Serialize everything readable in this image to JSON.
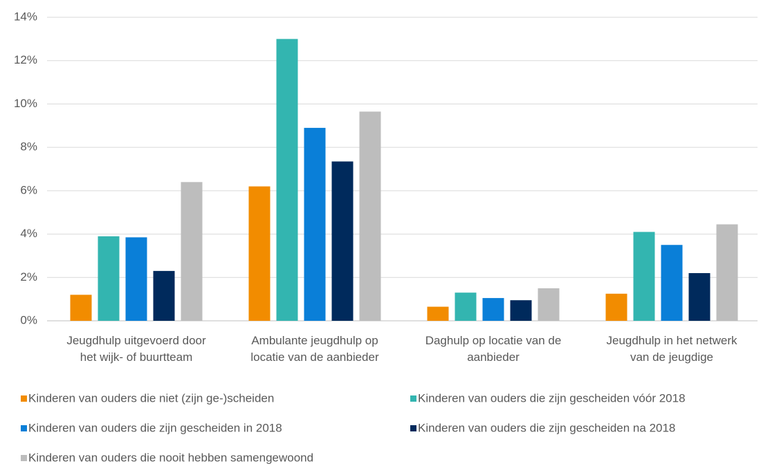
{
  "chart_data": {
    "type": "bar",
    "categories": [
      "Jeugdhulp uitgevoerd door\nhet wijk- of buurtteam",
      "Ambulante jeugdhulp op\nlocatie van de aanbieder",
      "Daghulp op locatie van de\naanbieder",
      "Jeugdhulp in het netwerk\nvan de jeugdige"
    ],
    "series": [
      {
        "name": "Kinderen van ouders die niet (zijn ge-)scheiden",
        "color": "#f28c00",
        "values": [
          1.2,
          6.2,
          0.65,
          1.25
        ]
      },
      {
        "name": "Kinderen van ouders die zijn gescheiden vóór 2018",
        "color": "#33b5b0",
        "values": [
          3.9,
          13.0,
          1.3,
          4.1
        ]
      },
      {
        "name": "Kinderen van ouders die zijn gescheiden in 2018",
        "color": "#0a7fd8",
        "values": [
          3.85,
          8.9,
          1.05,
          3.5
        ]
      },
      {
        "name": "Kinderen van ouders die zijn gescheiden na 2018",
        "color": "#002a5c",
        "values": [
          2.3,
          7.35,
          0.95,
          2.2
        ]
      },
      {
        "name": "Kinderen van ouders die nooit hebben samengewoond",
        "color": "#bdbdbd",
        "values": [
          6.4,
          9.65,
          1.5,
          4.45
        ]
      }
    ],
    "ylim": [
      0,
      14
    ],
    "yticks": [
      {
        "value": 0,
        "label": "0%"
      },
      {
        "value": 2,
        "label": "2%"
      },
      {
        "value": 4,
        "label": "4%"
      },
      {
        "value": 6,
        "label": "6%"
      },
      {
        "value": 8,
        "label": "8%"
      },
      {
        "value": 10,
        "label": "10%"
      },
      {
        "value": 12,
        "label": "12%"
      },
      {
        "value": 14,
        "label": "14%"
      }
    ],
    "grid": true,
    "legend": "bottom"
  }
}
